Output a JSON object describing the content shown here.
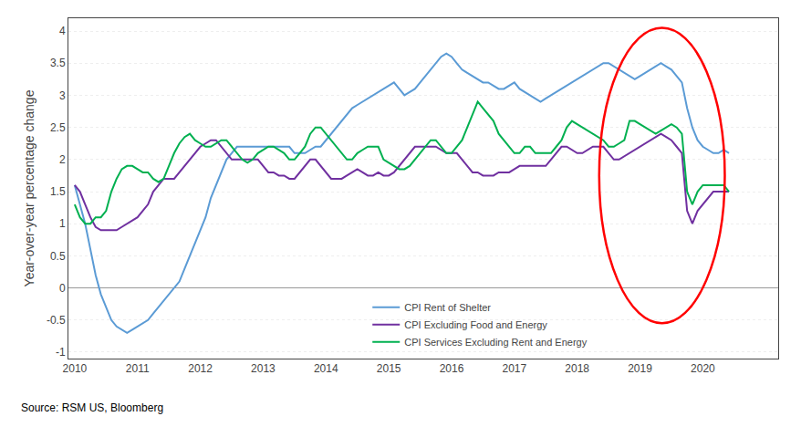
{
  "chart_data": {
    "type": "line",
    "ylabel": "Year-over-year percentage change",
    "source": "Source: RSM US, Bloomberg",
    "x": [
      2010,
      2010.083333,
      2010.166667,
      2010.25,
      2010.333333,
      2010.416667,
      2010.5,
      2010.583333,
      2010.666667,
      2010.75,
      2010.833333,
      2010.916667,
      2011,
      2011.083333,
      2011.166667,
      2011.25,
      2011.333333,
      2011.416667,
      2011.5,
      2011.583333,
      2011.666667,
      2011.75,
      2011.833333,
      2011.916667,
      2012,
      2012.083333,
      2012.166667,
      2012.25,
      2012.333333,
      2012.416667,
      2012.5,
      2012.583333,
      2012.666667,
      2012.75,
      2012.833333,
      2012.916667,
      2013,
      2013.083333,
      2013.166667,
      2013.25,
      2013.333333,
      2013.416667,
      2013.5,
      2013.583333,
      2013.666667,
      2013.75,
      2013.833333,
      2013.916667,
      2014,
      2014.083333,
      2014.166667,
      2014.25,
      2014.333333,
      2014.416667,
      2014.5,
      2014.583333,
      2014.666667,
      2014.75,
      2014.833333,
      2014.916667,
      2015,
      2015.083333,
      2015.166667,
      2015.25,
      2015.333333,
      2015.416667,
      2015.5,
      2015.583333,
      2015.666667,
      2015.75,
      2015.833333,
      2015.916667,
      2016,
      2016.083333,
      2016.166667,
      2016.25,
      2016.333333,
      2016.416667,
      2016.5,
      2016.583333,
      2016.666667,
      2016.75,
      2016.833333,
      2016.916667,
      2017,
      2017.083333,
      2017.166667,
      2017.25,
      2017.333333,
      2017.416667,
      2017.5,
      2017.583333,
      2017.666667,
      2017.75,
      2017.833333,
      2017.916667,
      2018,
      2018.083333,
      2018.166667,
      2018.25,
      2018.333333,
      2018.416667,
      2018.5,
      2018.583333,
      2018.666667,
      2018.75,
      2018.833333,
      2018.916667,
      2019,
      2019.083333,
      2019.166667,
      2019.25,
      2019.333333,
      2019.416667,
      2019.5,
      2019.583333,
      2019.666667,
      2019.75,
      2019.833333,
      2019.916667,
      2020,
      2020.083333,
      2020.166667,
      2020.25,
      2020.333333,
      2020.416667
    ],
    "series": [
      {
        "name": "CPI Rent of Shelter",
        "color": "#5B9BD5",
        "values": [
          1.6,
          1.3,
          1.0,
          0.6,
          0.2,
          -0.1,
          -0.3,
          -0.5,
          -0.6,
          -0.65,
          -0.7,
          -0.65,
          -0.6,
          -0.55,
          -0.5,
          -0.4,
          -0.3,
          -0.2,
          -0.1,
          0.0,
          0.1,
          0.3,
          0.5,
          0.7,
          0.9,
          1.1,
          1.4,
          1.6,
          1.8,
          2.0,
          2.1,
          2.2,
          2.2,
          2.2,
          2.2,
          2.2,
          2.2,
          2.2,
          2.2,
          2.2,
          2.2,
          2.2,
          2.1,
          2.1,
          2.1,
          2.15,
          2.2,
          2.2,
          2.3,
          2.4,
          2.5,
          2.6,
          2.7,
          2.8,
          2.85,
          2.9,
          2.95,
          3.0,
          3.05,
          3.1,
          3.15,
          3.2,
          3.1,
          3.0,
          3.05,
          3.1,
          3.2,
          3.3,
          3.4,
          3.5,
          3.6,
          3.65,
          3.6,
          3.5,
          3.4,
          3.35,
          3.3,
          3.25,
          3.2,
          3.2,
          3.15,
          3.1,
          3.1,
          3.15,
          3.2,
          3.1,
          3.05,
          3.0,
          2.95,
          2.9,
          2.95,
          3.0,
          3.05,
          3.1,
          3.15,
          3.2,
          3.25,
          3.3,
          3.35,
          3.4,
          3.45,
          3.5,
          3.5,
          3.45,
          3.4,
          3.35,
          3.3,
          3.25,
          3.3,
          3.35,
          3.4,
          3.45,
          3.5,
          3.45,
          3.4,
          3.3,
          3.2,
          2.8,
          2.5,
          2.3,
          2.2,
          2.15,
          2.1,
          2.1,
          2.15,
          2.1
        ]
      },
      {
        "name": "CPI Excluding Food and Energy",
        "color": "#7030A0",
        "values": [
          1.6,
          1.5,
          1.3,
          1.1,
          0.95,
          0.9,
          0.9,
          0.9,
          0.9,
          0.95,
          1.0,
          1.05,
          1.1,
          1.2,
          1.3,
          1.5,
          1.6,
          1.7,
          1.7,
          1.7,
          1.8,
          1.9,
          2.0,
          2.1,
          2.2,
          2.25,
          2.3,
          2.3,
          2.2,
          2.1,
          2.0,
          2.0,
          2.0,
          2.0,
          2.0,
          2.0,
          1.9,
          1.8,
          1.8,
          1.75,
          1.75,
          1.7,
          1.7,
          1.8,
          1.9,
          2.0,
          2.0,
          1.9,
          1.8,
          1.7,
          1.7,
          1.7,
          1.75,
          1.8,
          1.85,
          1.8,
          1.75,
          1.75,
          1.8,
          1.75,
          1.75,
          1.8,
          1.9,
          2.0,
          2.1,
          2.2,
          2.2,
          2.2,
          2.2,
          2.2,
          2.15,
          2.1,
          2.1,
          2.1,
          2.0,
          1.9,
          1.8,
          1.8,
          1.75,
          1.75,
          1.75,
          1.8,
          1.8,
          1.8,
          1.85,
          1.9,
          1.9,
          1.9,
          1.9,
          1.9,
          1.9,
          2.0,
          2.1,
          2.2,
          2.2,
          2.15,
          2.1,
          2.1,
          2.15,
          2.2,
          2.2,
          2.2,
          2.1,
          2.0,
          2.0,
          2.05,
          2.1,
          2.15,
          2.2,
          2.25,
          2.3,
          2.35,
          2.4,
          2.35,
          2.3,
          2.2,
          2.1,
          1.2,
          1.0,
          1.2,
          1.3,
          1.4,
          1.5,
          1.5,
          1.5,
          1.5
        ]
      },
      {
        "name": "CPI Services Excluding Rent and Energy",
        "color": "#00B050",
        "values": [
          1.3,
          1.1,
          1.0,
          1.0,
          1.1,
          1.1,
          1.2,
          1.5,
          1.7,
          1.85,
          1.9,
          1.9,
          1.85,
          1.8,
          1.8,
          1.7,
          1.65,
          1.7,
          1.9,
          2.1,
          2.25,
          2.35,
          2.4,
          2.3,
          2.25,
          2.2,
          2.2,
          2.25,
          2.3,
          2.3,
          2.2,
          2.1,
          2.0,
          1.95,
          2.0,
          2.1,
          2.15,
          2.2,
          2.2,
          2.15,
          2.1,
          2.0,
          2.0,
          2.1,
          2.2,
          2.4,
          2.5,
          2.5,
          2.4,
          2.3,
          2.2,
          2.1,
          2.0,
          2.0,
          2.1,
          2.15,
          2.2,
          2.2,
          2.2,
          2.0,
          1.95,
          1.9,
          1.85,
          1.85,
          1.9,
          2.0,
          2.1,
          2.2,
          2.3,
          2.3,
          2.2,
          2.1,
          2.1,
          2.2,
          2.3,
          2.5,
          2.7,
          2.9,
          2.8,
          2.7,
          2.6,
          2.4,
          2.3,
          2.2,
          2.1,
          2.1,
          2.2,
          2.2,
          2.1,
          2.1,
          2.1,
          2.1,
          2.2,
          2.3,
          2.5,
          2.6,
          2.55,
          2.5,
          2.45,
          2.4,
          2.35,
          2.3,
          2.2,
          2.2,
          2.25,
          2.3,
          2.6,
          2.6,
          2.55,
          2.5,
          2.45,
          2.4,
          2.45,
          2.5,
          2.55,
          2.5,
          2.4,
          1.5,
          1.3,
          1.5,
          1.6,
          1.6,
          1.6,
          1.6,
          1.6,
          1.5
        ]
      }
    ],
    "xlim": [
      2009.9,
      2021.2
    ],
    "xticks": [
      2010,
      2011,
      2012,
      2013,
      2014,
      2015,
      2016,
      2017,
      2018,
      2019,
      2020
    ],
    "ylim": [
      -1.1,
      4.2
    ],
    "yticks": [
      -1,
      -0.5,
      0,
      0.5,
      1,
      1.5,
      2,
      2.5,
      3,
      3.5,
      4
    ],
    "grid": "y",
    "legend": "bottom",
    "ellipse": {
      "center_x": 2019.35,
      "center_y": 1.75,
      "width": 2.0,
      "height": 4.6,
      "color": "red"
    }
  }
}
